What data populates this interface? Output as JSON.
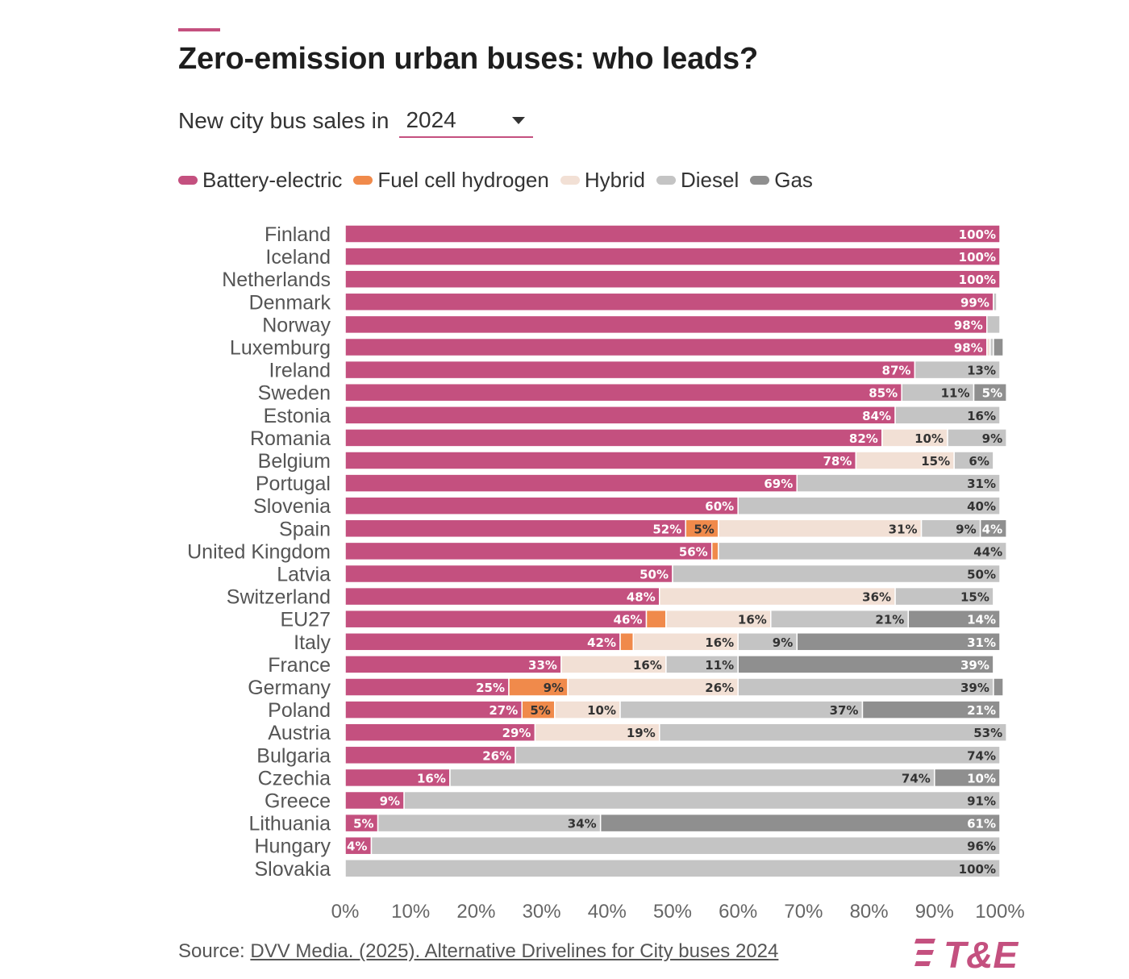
{
  "title": "Zero-emission urban buses: who leads?",
  "subtitle_label": "New city bus sales in",
  "year_selector": {
    "value": "2024"
  },
  "legend": [
    {
      "name": "Battery-electric",
      "color": "#c4507f"
    },
    {
      "name": "Fuel cell hydrogen",
      "color": "#f08a4b"
    },
    {
      "name": "Hybrid",
      "color": "#f2e0d5"
    },
    {
      "name": "Diesel",
      "color": "#c4c4c4"
    },
    {
      "name": "Gas",
      "color": "#8f8f8f"
    }
  ],
  "source": {
    "prefix": "Source: ",
    "link_text": "DVV Media. (2025). Alternative Drivelines for City buses 2024"
  },
  "logo_text": "T&E",
  "chart_data": {
    "type": "bar",
    "orientation": "horizontal",
    "stacked": true,
    "xlim": [
      0,
      100
    ],
    "x_ticks": [
      "0%",
      "10%",
      "20%",
      "30%",
      "40%",
      "50%",
      "60%",
      "70%",
      "80%",
      "90%",
      "100%"
    ],
    "grid": false,
    "legend_position": "top-left",
    "categories": [
      "Finland",
      "Iceland",
      "Netherlands",
      "Denmark",
      "Norway",
      "Luxemburg",
      "Ireland",
      "Sweden",
      "Estonia",
      "Romania",
      "Belgium",
      "Portugal",
      "Slovenia",
      "Spain",
      "United Kingdom",
      "Latvia",
      "Switzerland",
      "EU27",
      "Italy",
      "France",
      "Germany",
      "Poland",
      "Austria",
      "Bulgaria",
      "Czechia",
      "Greece",
      "Lithuania",
      "Hungary",
      "Slovakia"
    ],
    "series": [
      {
        "name": "Battery-electric",
        "color": "#c4507f",
        "values": [
          100,
          100,
          100,
          99,
          98,
          98,
          87,
          85,
          84,
          82,
          78,
          69,
          60,
          52,
          56,
          50,
          48,
          46,
          42,
          33,
          25,
          27,
          29,
          26,
          16,
          9,
          5,
          4,
          0
        ]
      },
      {
        "name": "Fuel cell hydrogen",
        "color": "#f08a4b",
        "values": [
          0,
          0,
          0,
          0,
          0,
          0,
          0,
          0,
          0,
          0,
          0,
          0,
          0,
          5,
          1,
          0,
          0,
          3,
          2,
          0,
          9,
          5,
          0,
          0,
          0,
          0,
          0,
          0,
          0
        ]
      },
      {
        "name": "Hybrid",
        "color": "#f2e0d5",
        "values": [
          0,
          0,
          0,
          0,
          0,
          0.5,
          0,
          0,
          0,
          10,
          15,
          0,
          0,
          31,
          0,
          0,
          36,
          16,
          16,
          16,
          26,
          10,
          19,
          0,
          0,
          0,
          0,
          0,
          0
        ]
      },
      {
        "name": "Diesel",
        "color": "#c4c4c4",
        "values": [
          0,
          0,
          0,
          0.5,
          2,
          0.5,
          13,
          11,
          16,
          9,
          6,
          31,
          40,
          9,
          44,
          50,
          15,
          21,
          9,
          11,
          39,
          37,
          53,
          74,
          74,
          91,
          34,
          96,
          100
        ]
      },
      {
        "name": "Gas",
        "color": "#8f8f8f",
        "values": [
          0,
          0,
          0,
          0,
          0,
          1.5,
          0,
          5,
          0,
          0,
          0,
          0,
          0,
          4,
          0,
          0,
          0,
          14,
          31,
          39,
          1.5,
          21,
          0,
          0,
          10,
          0,
          61,
          0,
          0
        ]
      }
    ],
    "data_labels": [
      [
        "100%",
        "",
        "",
        "",
        ""
      ],
      [
        "100%",
        "",
        "",
        "",
        ""
      ],
      [
        "100%",
        "",
        "",
        "",
        ""
      ],
      [
        "99%",
        "",
        "",
        "",
        ""
      ],
      [
        "98%",
        "",
        "",
        "",
        ""
      ],
      [
        "98%",
        "",
        "",
        "",
        ""
      ],
      [
        "87%",
        "",
        "",
        "13%",
        ""
      ],
      [
        "85%",
        "",
        "",
        "11%",
        "5%"
      ],
      [
        "84%",
        "",
        "",
        "16%",
        ""
      ],
      [
        "82%",
        "",
        "10%",
        "9%",
        ""
      ],
      [
        "78%",
        "",
        "15%",
        "6%",
        ""
      ],
      [
        "69%",
        "",
        "",
        "31%",
        ""
      ],
      [
        "60%",
        "",
        "",
        "40%",
        ""
      ],
      [
        "52%",
        "5%",
        "31%",
        "9%",
        "4%"
      ],
      [
        "56%",
        "",
        "",
        "44%",
        ""
      ],
      [
        "50%",
        "",
        "",
        "50%",
        ""
      ],
      [
        "48%",
        "",
        "36%",
        "15%",
        ""
      ],
      [
        "46%",
        "",
        "16%",
        "21%",
        "14%"
      ],
      [
        "42%",
        "",
        "16%",
        "9%",
        "31%"
      ],
      [
        "33%",
        "",
        "16%",
        "11%",
        "39%"
      ],
      [
        "25%",
        "9%",
        "26%",
        "39%",
        ""
      ],
      [
        "27%",
        "5%",
        "10%",
        "37%",
        "21%"
      ],
      [
        "29%",
        "",
        "19%",
        "53%",
        ""
      ],
      [
        "26%",
        "",
        "",
        "74%",
        ""
      ],
      [
        "16%",
        "",
        "",
        "74%",
        "10%"
      ],
      [
        "9%",
        "",
        "",
        "91%",
        ""
      ],
      [
        "5%",
        "",
        "",
        "34%",
        "61%"
      ],
      [
        "4%",
        "",
        "",
        "96%",
        ""
      ],
      [
        "",
        "",
        "",
        "100%",
        ""
      ]
    ]
  }
}
